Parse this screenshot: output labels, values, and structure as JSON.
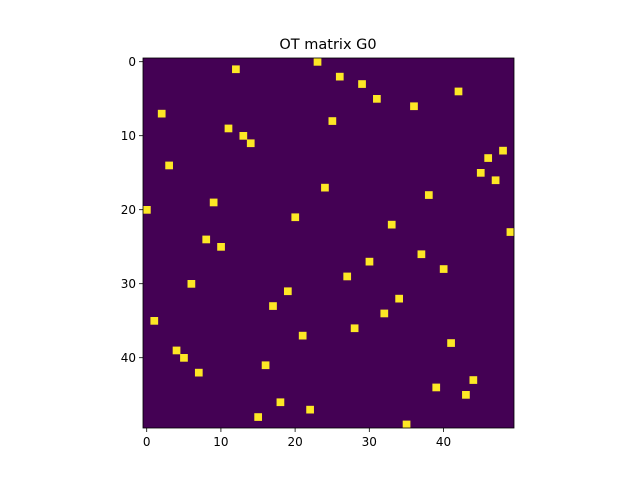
{
  "chart_data": {
    "type": "heatmap",
    "title": "OT matrix G0",
    "xlabel": "",
    "ylabel": "",
    "rows": 50,
    "cols": 50,
    "xlim": [
      -0.5,
      49.5
    ],
    "ylim": [
      49.5,
      -0.5
    ],
    "x_ticks": [
      0,
      10,
      20,
      30,
      40
    ],
    "y_ticks": [
      0,
      10,
      20,
      30,
      40
    ],
    "grid": false,
    "legend": "none",
    "background_color": "#440154",
    "highlight_color": "#fde725",
    "cells": [
      [
        0,
        23
      ],
      [
        1,
        12
      ],
      [
        2,
        26
      ],
      [
        3,
        29
      ],
      [
        4,
        42
      ],
      [
        5,
        31
      ],
      [
        6,
        36
      ],
      [
        7,
        2
      ],
      [
        8,
        25
      ],
      [
        9,
        11
      ],
      [
        10,
        13
      ],
      [
        11,
        14
      ],
      [
        12,
        48
      ],
      [
        13,
        46
      ],
      [
        14,
        3
      ],
      [
        15,
        45
      ],
      [
        16,
        47
      ],
      [
        17,
        24
      ],
      [
        18,
        38
      ],
      [
        19,
        9
      ],
      [
        20,
        0
      ],
      [
        21,
        20
      ],
      [
        22,
        33
      ],
      [
        23,
        49
      ],
      [
        24,
        8
      ],
      [
        25,
        10
      ],
      [
        26,
        37
      ],
      [
        27,
        30
      ],
      [
        28,
        40
      ],
      [
        29,
        27
      ],
      [
        30,
        6
      ],
      [
        31,
        19
      ],
      [
        32,
        34
      ],
      [
        33,
        17
      ],
      [
        34,
        32
      ],
      [
        35,
        1
      ],
      [
        36,
        28
      ],
      [
        37,
        21
      ],
      [
        38,
        41
      ],
      [
        39,
        4
      ],
      [
        40,
        5
      ],
      [
        41,
        16
      ],
      [
        42,
        7
      ],
      [
        43,
        44
      ],
      [
        44,
        39
      ],
      [
        45,
        43
      ],
      [
        46,
        18
      ],
      [
        47,
        22
      ],
      [
        48,
        15
      ],
      [
        49,
        35
      ]
    ]
  }
}
